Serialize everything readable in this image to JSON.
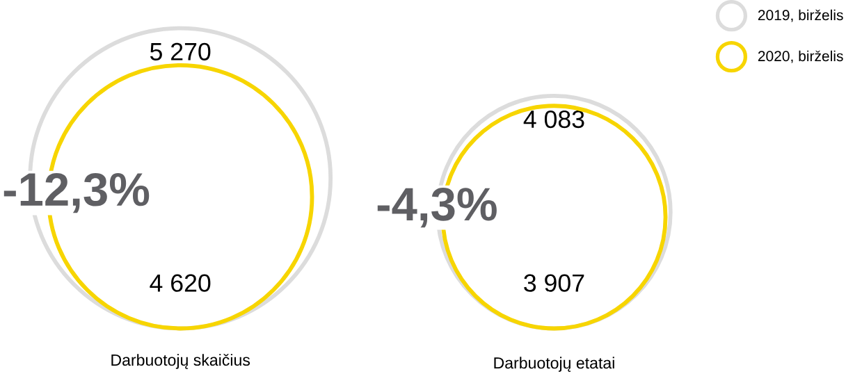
{
  "chart_data": {
    "type": "other",
    "categories": [
      "Darbuotojų skaičius",
      "Darbuotojų etatai"
    ],
    "series": [
      {
        "name": "2019, birželis",
        "color": "#dcdcdc",
        "values": [
          5270,
          4083
        ],
        "value_labels": [
          "5 270",
          "4 083"
        ]
      },
      {
        "name": "2020, birželis",
        "color": "#f7d500",
        "values": [
          4620,
          3907
        ],
        "value_labels": [
          "4 620",
          "3 907"
        ]
      }
    ],
    "annotations": [
      "-12,3%",
      "-4,3%"
    ],
    "legend": "top right"
  }
}
